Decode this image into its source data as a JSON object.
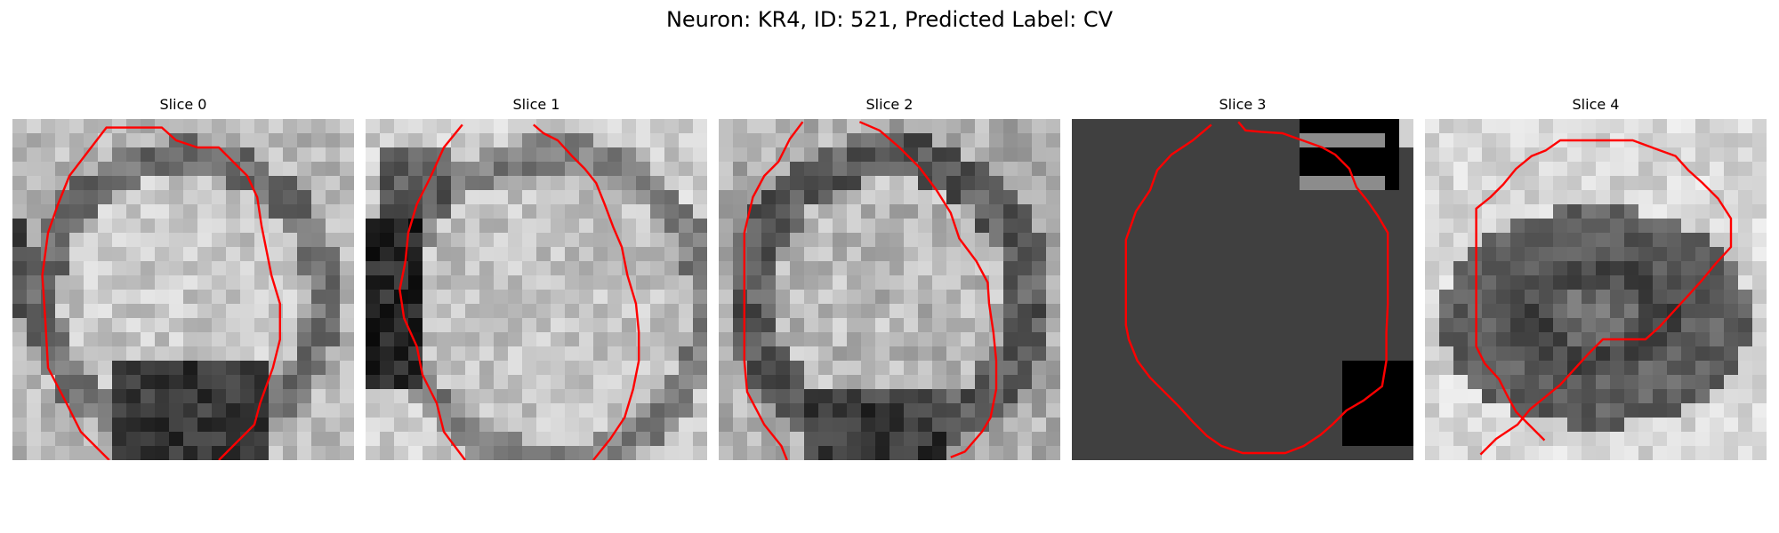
{
  "figure": {
    "title": "Neuron: KR4, ID: 521, Predicted Label: CV"
  },
  "panels": [
    {
      "title": "Slice 0",
      "image": "em-patch-slice-0",
      "overlay_color": "#ff0000"
    },
    {
      "title": "Slice 1",
      "image": "em-patch-slice-1",
      "overlay_color": "#ff0000"
    },
    {
      "title": "Slice 2",
      "image": "em-patch-slice-2",
      "overlay_color": "#ff0000"
    },
    {
      "title": "Slice 3",
      "image": "em-patch-slice-3",
      "overlay_color": "#ff0000"
    },
    {
      "title": "Slice 4",
      "image": "em-patch-slice-4",
      "overlay_color": "#ff0000"
    }
  ]
}
